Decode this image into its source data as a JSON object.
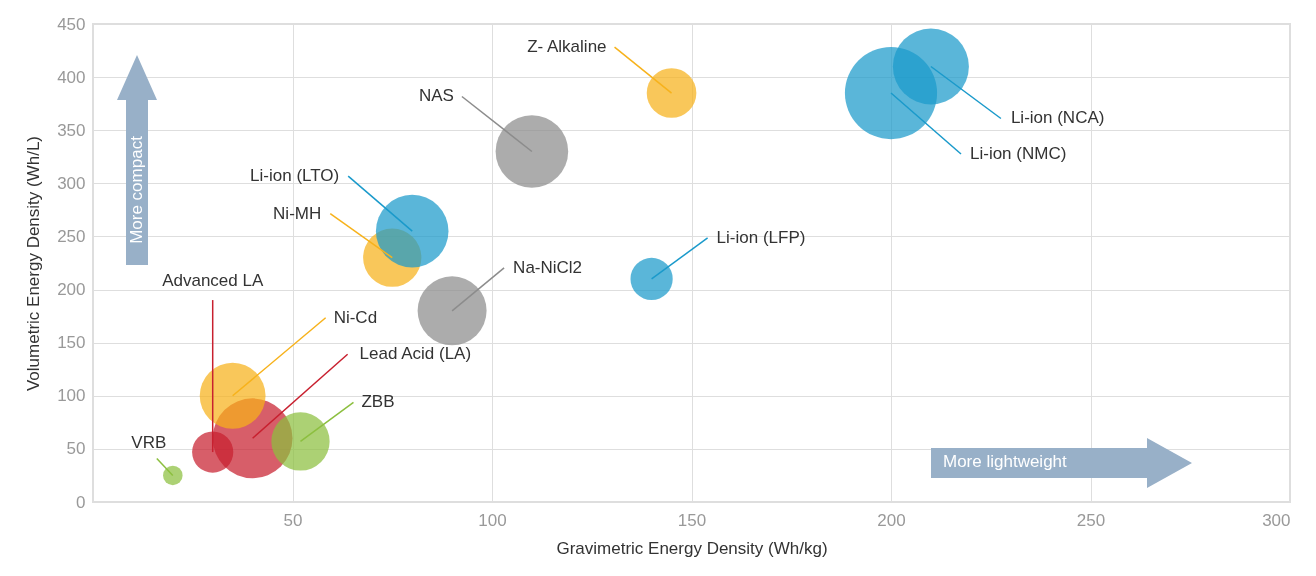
{
  "chart_data": {
    "type": "bubble",
    "xlabel": "Gravimetric Energy Density (Wh/kg)",
    "ylabel": "Volumetric Energy Density (Wh/L)",
    "xlim": [
      0,
      300
    ],
    "ylim": [
      0,
      450
    ],
    "xticks": [
      50,
      100,
      150,
      200,
      250,
      300
    ],
    "yticks": [
      0,
      50,
      100,
      150,
      200,
      250,
      300,
      350,
      400,
      450
    ],
    "grid": true,
    "annotations": [
      "More compact",
      "More lightweight"
    ],
    "series": [
      {
        "name": "VRB",
        "color": "#8cbf3f",
        "x": [
          20
        ],
        "values": [
          25
        ],
        "sizes": [
          0.045
        ]
      },
      {
        "name": "Advanced LA",
        "color": "#c8202f",
        "x": [
          30
        ],
        "values": [
          47
        ],
        "sizes": [
          0.2
        ]
      },
      {
        "name": "Lead Acid (LA)",
        "color": "#c8202f",
        "x": [
          40
        ],
        "values": [
          60
        ],
        "sizes": [
          0.75
        ]
      },
      {
        "name": "Ni-Cd",
        "color": "#f7b21b",
        "x": [
          35
        ],
        "values": [
          100
        ],
        "sizes": [
          0.51
        ]
      },
      {
        "name": "ZBB",
        "color": "#8cbf3f",
        "x": [
          52
        ],
        "values": [
          57
        ],
        "sizes": [
          0.4
        ]
      },
      {
        "name": "Ni-MH",
        "color": "#f7b21b",
        "x": [
          75
        ],
        "values": [
          230
        ],
        "sizes": [
          0.4
        ]
      },
      {
        "name": "Li-ion (LTO)",
        "color": "#1a9acb",
        "x": [
          80
        ],
        "values": [
          255
        ],
        "sizes": [
          0.62
        ]
      },
      {
        "name": "Na-NiCl2",
        "color": "#8c8c8c",
        "x": [
          90
        ],
        "values": [
          180
        ],
        "sizes": [
          0.56
        ]
      },
      {
        "name": "NAS",
        "color": "#8c8c8c",
        "x": [
          110
        ],
        "values": [
          330
        ],
        "sizes": [
          0.62
        ]
      },
      {
        "name": "Z- Alkaline",
        "color": "#f7b21b",
        "x": [
          145
        ],
        "values": [
          385
        ],
        "sizes": [
          0.29
        ]
      },
      {
        "name": "Li-ion (LFP)",
        "color": "#1a9acb",
        "x": [
          140
        ],
        "values": [
          210
        ],
        "sizes": [
          0.21
        ]
      },
      {
        "name": "Li-ion (NMC)",
        "color": "#1a9acb",
        "x": [
          200
        ],
        "values": [
          385
        ],
        "sizes": [
          1
        ]
      },
      {
        "name": "Li-ion (NCA)",
        "color": "#1a9acb",
        "x": [
          210
        ],
        "values": [
          410
        ],
        "sizes": [
          0.68
        ]
      }
    ]
  }
}
